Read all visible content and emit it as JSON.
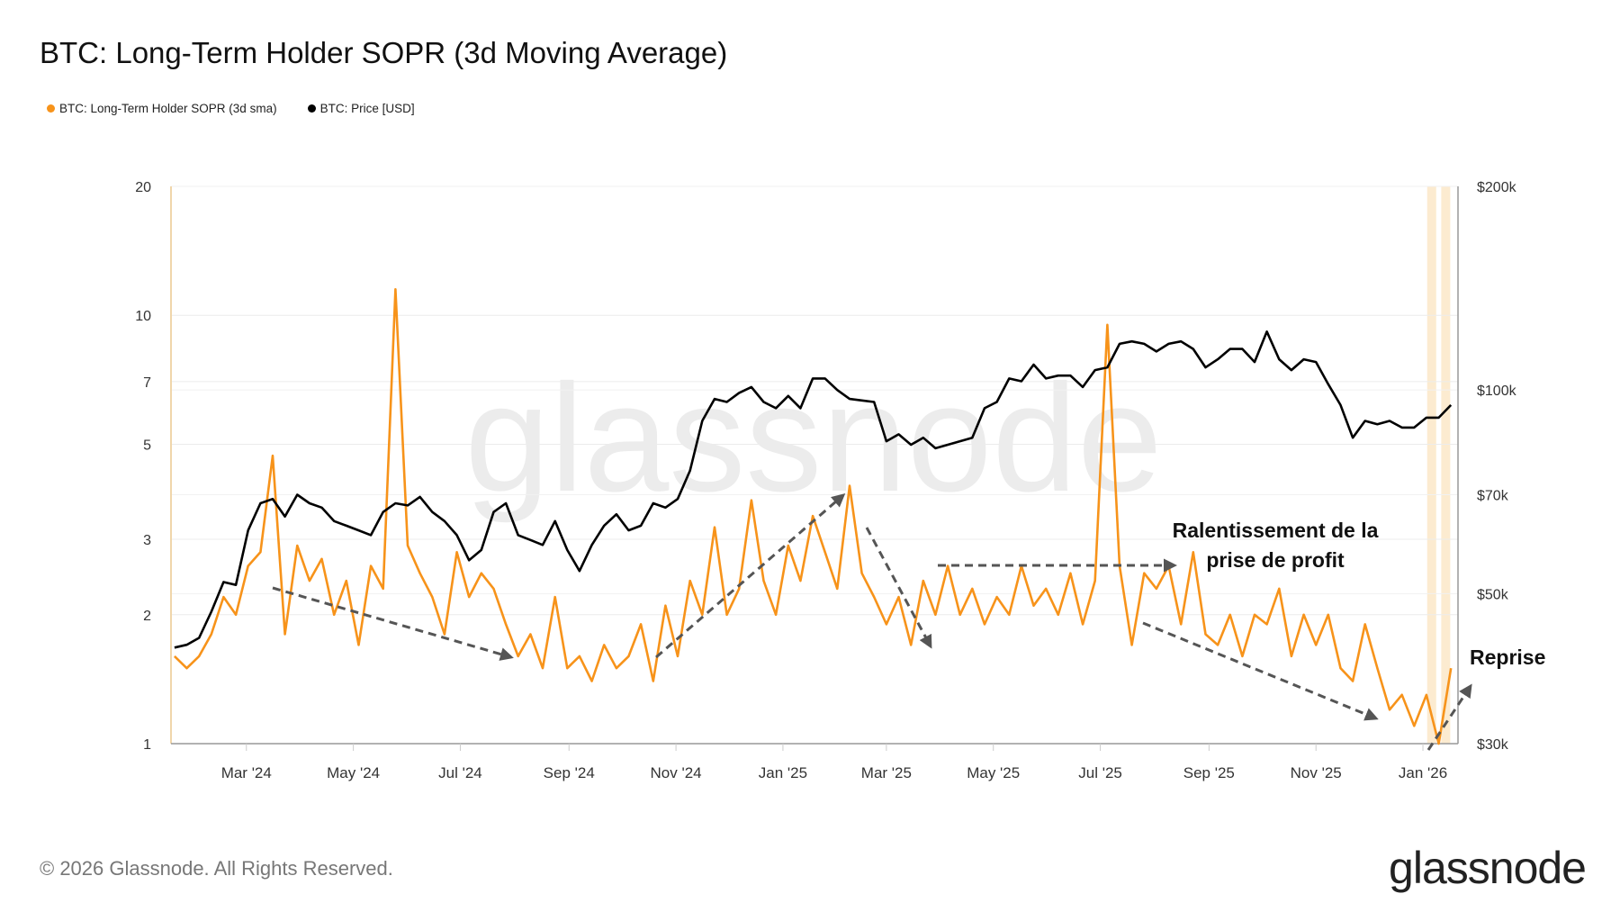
{
  "title": "BTC: Long-Term Holder SOPR (3d Moving Average)",
  "legend": [
    {
      "label": "BTC: Long-Term Holder SOPR (3d sma)",
      "color": "#f7931a"
    },
    {
      "label": "BTC: Price [USD]",
      "color": "#000000"
    }
  ],
  "footer": {
    "copyright": "© 2026 Glassnode. All Rights Reserved.",
    "logo": "glassnode",
    "watermark": "glassnode"
  },
  "chart_data": {
    "type": "line",
    "title": "BTC: Long-Term Holder SOPR (3d Moving Average)",
    "x_ticks": [
      {
        "date": "2024-03-01",
        "label": "Mar '24"
      },
      {
        "date": "2024-05-01",
        "label": "May '24"
      },
      {
        "date": "2024-07-01",
        "label": "Jul '24"
      },
      {
        "date": "2024-09-01",
        "label": "Sep '24"
      },
      {
        "date": "2024-11-01",
        "label": "Nov '24"
      },
      {
        "date": "2025-01-01",
        "label": "Jan '25"
      },
      {
        "date": "2025-03-01",
        "label": "Mar '25"
      },
      {
        "date": "2025-05-01",
        "label": "May '25"
      },
      {
        "date": "2025-07-01",
        "label": "Jul '25"
      },
      {
        "date": "2025-09-01",
        "label": "Sep '25"
      },
      {
        "date": "2025-11-01",
        "label": "Nov '25"
      },
      {
        "date": "2026-01-01",
        "label": "Jan '26"
      }
    ],
    "xlim": [
      "2024-01-18",
      "2026-01-21"
    ],
    "y_left": {
      "scale": "log",
      "range": [
        1,
        20
      ],
      "ticks": [
        {
          "v": 1,
          "label": "1"
        },
        {
          "v": 2,
          "label": "2"
        },
        {
          "v": 3,
          "label": "3"
        },
        {
          "v": 5,
          "label": "5"
        },
        {
          "v": 7,
          "label": "7"
        },
        {
          "v": 10,
          "label": "10"
        },
        {
          "v": 20,
          "label": "20"
        }
      ]
    },
    "y_right": {
      "scale": "log",
      "range": [
        30000,
        200000
      ],
      "ticks": [
        {
          "v": 30000,
          "label": "$30k"
        },
        {
          "v": 50000,
          "label": "$50k"
        },
        {
          "v": 70000,
          "label": "$70k"
        },
        {
          "v": 100000,
          "label": "$100k"
        },
        {
          "v": 200000,
          "label": "$200k"
        }
      ]
    },
    "grid": true,
    "legend_position": "top-left",
    "highlight_dates": [
      "2026-01-06",
      "2026-01-14"
    ],
    "x": [
      "2024-01-20",
      "2024-01-27",
      "2024-02-03",
      "2024-02-10",
      "2024-02-17",
      "2024-02-24",
      "2024-03-02",
      "2024-03-09",
      "2024-03-16",
      "2024-03-23",
      "2024-03-30",
      "2024-04-06",
      "2024-04-13",
      "2024-04-20",
      "2024-04-27",
      "2024-05-04",
      "2024-05-11",
      "2024-05-18",
      "2024-05-25",
      "2024-06-01",
      "2024-06-08",
      "2024-06-15",
      "2024-06-22",
      "2024-06-29",
      "2024-07-06",
      "2024-07-13",
      "2024-07-20",
      "2024-07-27",
      "2024-08-03",
      "2024-08-10",
      "2024-08-17",
      "2024-08-24",
      "2024-08-31",
      "2024-09-07",
      "2024-09-14",
      "2024-09-21",
      "2024-09-28",
      "2024-10-05",
      "2024-10-12",
      "2024-10-19",
      "2024-10-26",
      "2024-11-02",
      "2024-11-09",
      "2024-11-16",
      "2024-11-23",
      "2024-11-30",
      "2024-12-07",
      "2024-12-14",
      "2024-12-21",
      "2024-12-28",
      "2025-01-04",
      "2025-01-11",
      "2025-01-18",
      "2025-01-25",
      "2025-02-01",
      "2025-02-08",
      "2025-02-15",
      "2025-02-22",
      "2025-03-01",
      "2025-03-08",
      "2025-03-15",
      "2025-03-22",
      "2025-03-29",
      "2025-04-05",
      "2025-04-12",
      "2025-04-19",
      "2025-04-26",
      "2025-05-03",
      "2025-05-10",
      "2025-05-17",
      "2025-05-24",
      "2025-05-31",
      "2025-06-07",
      "2025-06-14",
      "2025-06-21",
      "2025-06-28",
      "2025-07-05",
      "2025-07-12",
      "2025-07-19",
      "2025-07-26",
      "2025-08-02",
      "2025-08-09",
      "2025-08-16",
      "2025-08-23",
      "2025-08-30",
      "2025-09-06",
      "2025-09-13",
      "2025-09-20",
      "2025-09-27",
      "2025-10-04",
      "2025-10-11",
      "2025-10-18",
      "2025-10-25",
      "2025-11-01",
      "2025-11-08",
      "2025-11-15",
      "2025-11-22",
      "2025-11-29",
      "2025-12-06",
      "2025-12-13",
      "2025-12-20",
      "2025-12-27",
      "2026-01-03",
      "2026-01-10",
      "2026-01-17"
    ],
    "series": [
      {
        "name": "BTC: Long-Term Holder SOPR (3d sma)",
        "axis": "left",
        "color": "#f7931a",
        "values": [
          1.6,
          1.5,
          1.6,
          1.8,
          2.2,
          2.0,
          2.6,
          2.8,
          4.7,
          1.8,
          2.9,
          2.4,
          2.7,
          2.0,
          2.4,
          1.7,
          2.6,
          2.3,
          11.5,
          2.9,
          2.5,
          2.2,
          1.8,
          2.8,
          2.2,
          2.5,
          2.3,
          1.9,
          1.6,
          1.8,
          1.5,
          2.2,
          1.5,
          1.6,
          1.4,
          1.7,
          1.5,
          1.6,
          1.9,
          1.4,
          2.1,
          1.6,
          2.4,
          2.0,
          3.2,
          2.0,
          2.3,
          3.7,
          2.4,
          2.0,
          2.9,
          2.4,
          3.4,
          2.8,
          2.3,
          4.0,
          2.5,
          2.2,
          1.9,
          2.2,
          1.7,
          2.4,
          2.0,
          2.6,
          2.0,
          2.3,
          1.9,
          2.2,
          2.0,
          2.6,
          2.1,
          2.3,
          2.0,
          2.5,
          1.9,
          2.4,
          9.5,
          2.6,
          1.7,
          2.5,
          2.3,
          2.6,
          1.9,
          2.8,
          1.8,
          1.7,
          2.0,
          1.6,
          2.0,
          1.9,
          2.3,
          1.6,
          2.0,
          1.7,
          2.0,
          1.5,
          1.4,
          1.9,
          1.5,
          1.2,
          1.3,
          1.1,
          1.3,
          1.0,
          1.5
        ]
      },
      {
        "name": "BTC: Price [USD]",
        "axis": "right",
        "color": "#000000",
        "values": [
          41600,
          42000,
          43000,
          47000,
          52000,
          51500,
          62000,
          68000,
          69000,
          65000,
          70000,
          68000,
          67000,
          64000,
          63000,
          62000,
          61000,
          66000,
          68000,
          67500,
          69500,
          66000,
          64000,
          61000,
          56000,
          58000,
          66000,
          68000,
          61000,
          60000,
          59000,
          64000,
          58000,
          54000,
          59000,
          63000,
          65500,
          62000,
          63000,
          68000,
          67000,
          69000,
          76000,
          90000,
          97000,
          96000,
          99000,
          101000,
          96000,
          94000,
          98000,
          94000,
          104000,
          104000,
          100000,
          97000,
          96500,
          96000,
          84000,
          86000,
          83000,
          85000,
          82000,
          83000,
          84000,
          85000,
          94000,
          96000,
          104000,
          103000,
          109000,
          104000,
          105000,
          105000,
          101000,
          107000,
          108000,
          117000,
          118000,
          117000,
          114000,
          117000,
          118000,
          115000,
          108000,
          111000,
          115000,
          115000,
          110000,
          122000,
          111000,
          107000,
          111000,
          110000,
          102000,
          95000,
          85000,
          90000,
          89000,
          90000,
          88000,
          88000,
          91000,
          91000,
          95000
        ]
      }
    ],
    "annotations": [
      {
        "text_lines": [
          "Ralentissement de la",
          "prise de profit"
        ]
      },
      {
        "text_lines": [
          "Reprise"
        ]
      }
    ]
  }
}
